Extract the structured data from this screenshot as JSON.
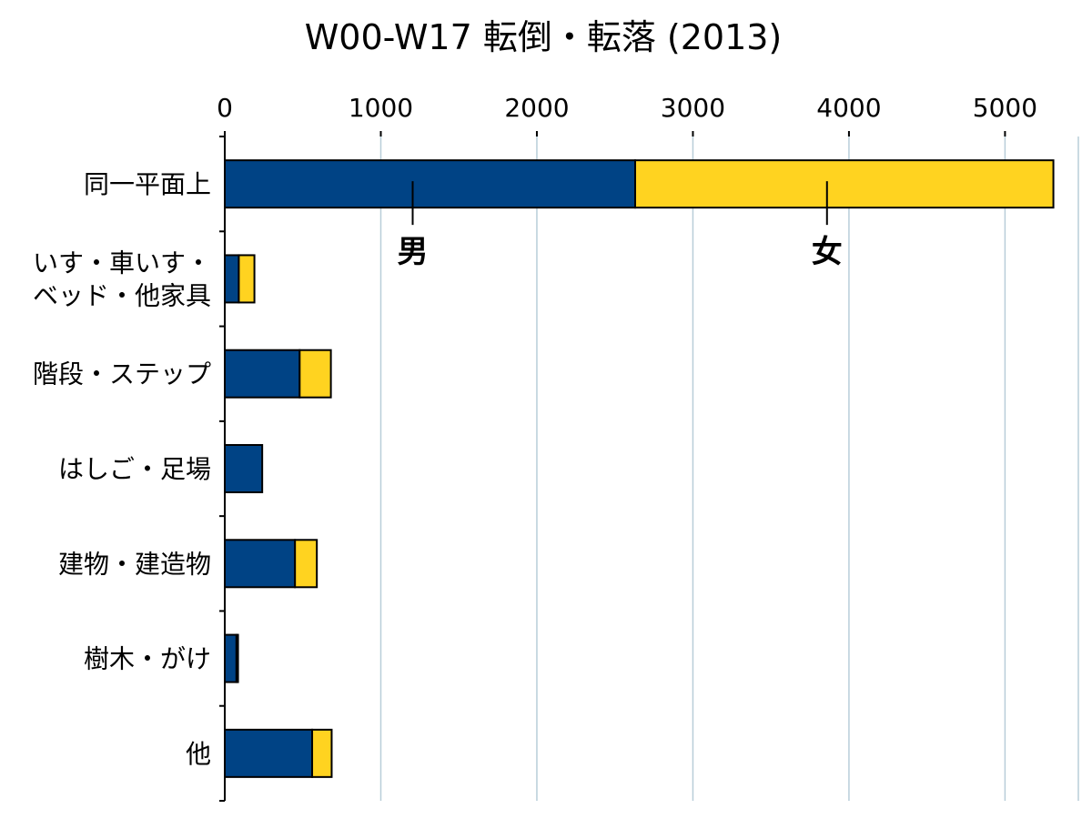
{
  "chart_data": {
    "type": "bar",
    "orientation": "horizontal",
    "stacked": true,
    "title": "W00-W17 転倒・転落 (2013)",
    "categories": [
      [
        "同一平面上"
      ],
      [
        "いす・車いす・",
        "ベッド・他家具"
      ],
      [
        "階段・ステップ"
      ],
      [
        "はしご・足場"
      ],
      [
        "建物・建造物"
      ],
      [
        "樹木・がけ"
      ],
      [
        "他"
      ]
    ],
    "series": [
      {
        "name": "男",
        "color": "#004385",
        "values": [
          2630,
          90,
          480,
          240,
          450,
          75,
          560
        ]
      },
      {
        "name": "女",
        "color": "#ffd320",
        "values": [
          2680,
          100,
          200,
          0,
          140,
          10,
          125
        ]
      }
    ],
    "xlim": [
      0,
      5350
    ],
    "xticks": [
      "0",
      "1000",
      "2000",
      "3000",
      "4000",
      "5000"
    ],
    "x_axis_position": "top",
    "grid": "vertical",
    "legend": "inline-labels-on-first-bar"
  }
}
